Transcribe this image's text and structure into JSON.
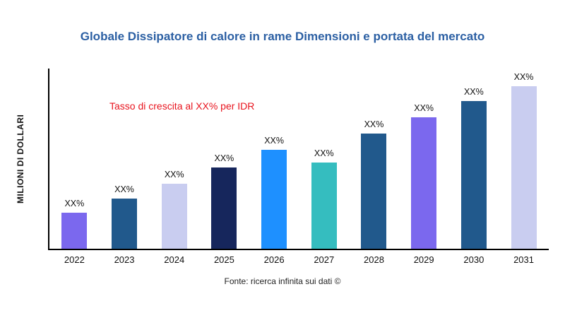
{
  "title": "Globale Dissipatore di calore in rame Dimensioni e portata del mercato",
  "y_axis_label": "MILIONI DI DOLLARI",
  "annotation": "Tasso di crescita al XX% per IDR",
  "annotation_color": "#e8141e",
  "title_color": "#2b5fa3",
  "source": "Fonte: ricerca infinita sui dati ©",
  "chart_data": {
    "type": "bar",
    "title": "Globale Dissipatore di calore in rame Dimensioni e portata del mercato",
    "xlabel": "",
    "ylabel": "MILIONI DI DOLLARI",
    "ylim": [
      0,
      100
    ],
    "grid": false,
    "legend": "none",
    "categories": [
      "2022",
      "2023",
      "2024",
      "2025",
      "2026",
      "2027",
      "2028",
      "2029",
      "2030",
      "2031"
    ],
    "values": [
      20,
      28,
      36,
      45,
      55,
      48,
      64,
      73,
      82,
      90
    ],
    "bar_labels": [
      "XX%",
      "XX%",
      "XX%",
      "XX%",
      "XX%",
      "XX%",
      "XX%",
      "XX%",
      "XX%",
      "XX%"
    ],
    "bar_colors": [
      "#7b68ee",
      "#21598c",
      "#c9cdf0",
      "#16265c",
      "#1e90ff",
      "#35bdbf",
      "#21598c",
      "#7b68ee",
      "#21598c",
      "#c9cdf0"
    ]
  }
}
